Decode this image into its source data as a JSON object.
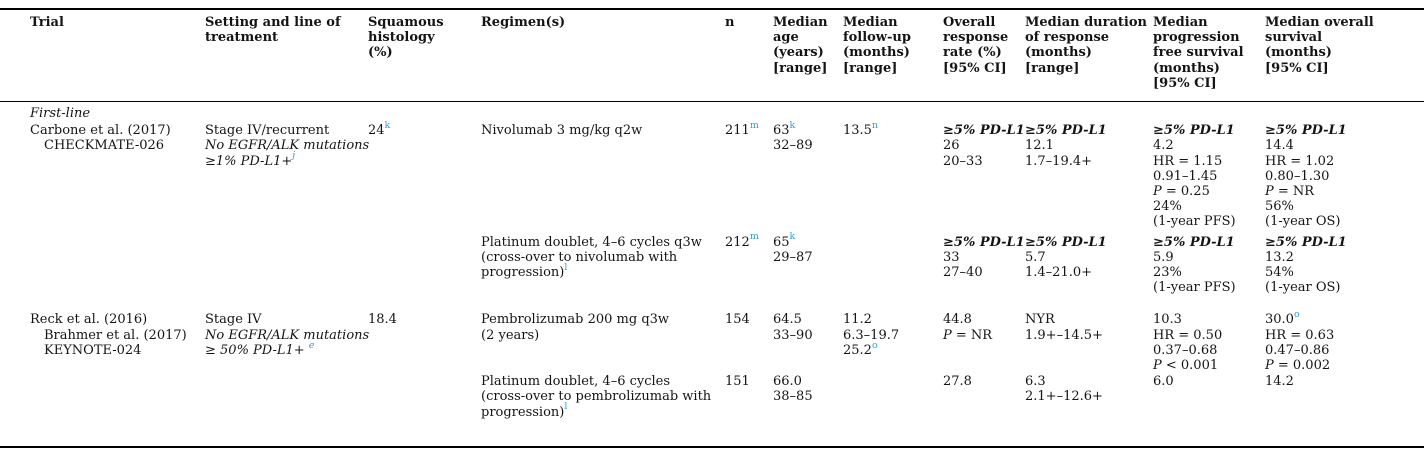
{
  "colors": {
    "accent_footnote": "#2e9fd6",
    "text": "#141414",
    "rule": "#000000",
    "background": "#ffffff"
  },
  "table": {
    "columns": [
      {
        "key": "trial",
        "lines": [
          "Trial"
        ]
      },
      {
        "key": "setting",
        "lines": [
          "Setting and line of",
          "treatment"
        ]
      },
      {
        "key": "squamous",
        "lines": [
          "Squamous",
          "histology",
          "(%)"
        ]
      },
      {
        "key": "regimen",
        "lines": [
          "Regimen(s)"
        ]
      },
      {
        "key": "n",
        "lines": [
          "n"
        ]
      },
      {
        "key": "median-age",
        "lines": [
          "Median",
          "age",
          "(years)",
          "[range]"
        ]
      },
      {
        "key": "median-followup",
        "lines": [
          "Median",
          "follow-up",
          "(months)",
          "[range]"
        ]
      },
      {
        "key": "orr",
        "lines": [
          "Overall",
          "response",
          "rate (%)",
          "[95% CI]"
        ]
      },
      {
        "key": "duration-of-response",
        "lines": [
          "Median duration",
          "of response",
          "(months)",
          "[range]"
        ]
      },
      {
        "key": "pfs",
        "lines": [
          "Median",
          "progression",
          "free survival",
          "(months)",
          "[95% CI]"
        ]
      },
      {
        "key": "os",
        "lines": [
          "Median overall",
          "survival",
          "(months)",
          "[95% CI]"
        ]
      }
    ],
    "rows": [
      {
        "name": "row-first-line-section",
        "section": true,
        "label": "First-line"
      },
      {
        "name": "row-checkmate026-nivolumab",
        "cells": [
          [
            {
              "t": "Carbone et al. (2017)"
            },
            {
              "t": "CHECKMATE-026",
              "ind": true
            }
          ],
          [
            {
              "t": "Stage IV/recurrent"
            },
            {
              "t": "No EGFR/ALK mutations",
              "st": "i"
            },
            {
              "t": "≥1% PD-L1+",
              "st": "i",
              "sup": "j"
            }
          ],
          [
            {
              "t": "24",
              "sup": "k"
            }
          ],
          [
            {
              "t": "Nivolumab 3 mg/kg q2w"
            }
          ],
          [
            {
              "t": "211",
              "sup": "m"
            }
          ],
          [
            {
              "t": "63",
              "sup": "k"
            },
            {
              "t": "32–89"
            }
          ],
          [
            {
              "t": "13.5",
              "sup": "n"
            }
          ],
          [
            {
              "t": "≥5% PD-L1",
              "st": "bi"
            },
            {
              "t": "26"
            },
            {
              "t": "20–33"
            }
          ],
          [
            {
              "t": "≥5% PD-L1",
              "st": "bi"
            },
            {
              "t": "12.1"
            },
            {
              "t": "1.7–19.4+"
            }
          ],
          [
            {
              "t": "≥5% PD-L1",
              "st": "bi"
            },
            {
              "t": "4.2"
            },
            {
              "t": "HR = 1.15"
            },
            {
              "t": "0.91–1.45"
            },
            {
              "t": "P = 0.25",
              "st": "p"
            },
            {
              "t": "24%"
            },
            {
              "t": "(1-year PFS)"
            }
          ],
          [
            {
              "t": "≥5% PD-L1",
              "st": "bi"
            },
            {
              "t": "14.4"
            },
            {
              "t": "HR = 1.02"
            },
            {
              "t": "0.80–1.30"
            },
            {
              "t": "P = NR",
              "st": "p"
            },
            {
              "t": "56%"
            },
            {
              "t": "(1-year OS)"
            }
          ]
        ]
      },
      {
        "name": "row-checkmate026-platinum-doublet",
        "cells": [
          [],
          [],
          [],
          [
            {
              "t": "Platinum doublet, 4–6 cycles q3w"
            },
            {
              "t": "(cross-over to nivolumab with"
            },
            {
              "t": "progression)",
              "sup": "l"
            }
          ],
          [
            {
              "t": "212",
              "sup": "m"
            }
          ],
          [
            {
              "t": "65",
              "sup": "k"
            },
            {
              "t": "29–87"
            }
          ],
          [],
          [
            {
              "t": "≥5% PD-L1",
              "st": "bi"
            },
            {
              "t": "33"
            },
            {
              "t": "27–40"
            }
          ],
          [
            {
              "t": "≥5% PD-L1",
              "st": "bi"
            },
            {
              "t": "5.7"
            },
            {
              "t": "1.4–21.0+"
            }
          ],
          [
            {
              "t": "≥5% PD-L1",
              "st": "bi"
            },
            {
              "t": "5.9"
            },
            {
              "t": "23%"
            },
            {
              "t": "(1-year PFS)"
            }
          ],
          [
            {
              "t": "≥5% PD-L1",
              "st": "bi"
            },
            {
              "t": "13.2"
            },
            {
              "t": "54%"
            },
            {
              "t": "(1-year OS)"
            }
          ]
        ]
      },
      {
        "name": "row-keynote024-pembrolizumab",
        "cells": [
          [
            {
              "t": "Reck et al. (2016)"
            },
            {
              "t": "Brahmer et al. (2017)",
              "ind": true
            },
            {
              "t": "KEYNOTE-024",
              "ind": true
            }
          ],
          [
            {
              "t": "Stage IV"
            },
            {
              "t": "No EGFR/ALK mutations",
              "st": "i"
            },
            {
              "t": "≥ 50% PD-L1+ ",
              "st": "i",
              "sup": "e"
            }
          ],
          [
            {
              "t": "18.4"
            }
          ],
          [
            {
              "t": "Pembrolizumab 200 mg q3w"
            },
            {
              "t": "(2 years)"
            }
          ],
          [
            {
              "t": "154"
            }
          ],
          [
            {
              "t": "64.5"
            },
            {
              "t": "33–90"
            }
          ],
          [
            {
              "t": "11.2"
            },
            {
              "t": "6.3–19.7"
            },
            {
              "t": "25.2",
              "sup": "o"
            }
          ],
          [
            {
              "t": "44.8"
            },
            {
              "t": "P = NR",
              "st": "p"
            }
          ],
          [
            {
              "t": "NYR"
            },
            {
              "t": "1.9+–14.5+"
            }
          ],
          [
            {
              "t": "10.3"
            },
            {
              "t": "HR = 0.50"
            },
            {
              "t": "0.37–0.68"
            },
            {
              "t": "P < 0.001",
              "st": "p"
            }
          ],
          [
            {
              "t": "30.0",
              "sup": "o"
            },
            {
              "t": "HR = 0.63"
            },
            {
              "t": "0.47–0.86"
            },
            {
              "t": "P = 0.002",
              "st": "p"
            }
          ]
        ]
      },
      {
        "name": "row-keynote024-platinum-doublet",
        "cells": [
          [],
          [],
          [],
          [
            {
              "t": "Platinum doublet, 4–6 cycles"
            },
            {
              "t": "(cross-over to pembrolizumab with"
            },
            {
              "t": "progression)",
              "sup": "l"
            }
          ],
          [
            {
              "t": "151"
            }
          ],
          [
            {
              "t": "66.0"
            },
            {
              "t": "38–85"
            }
          ],
          [],
          [
            {
              "t": "27.8"
            }
          ],
          [
            {
              "t": "6.3"
            },
            {
              "t": "2.1+–12.6+"
            }
          ],
          [
            {
              "t": "6.0"
            }
          ],
          [
            {
              "t": "14.2"
            }
          ]
        ]
      }
    ]
  }
}
